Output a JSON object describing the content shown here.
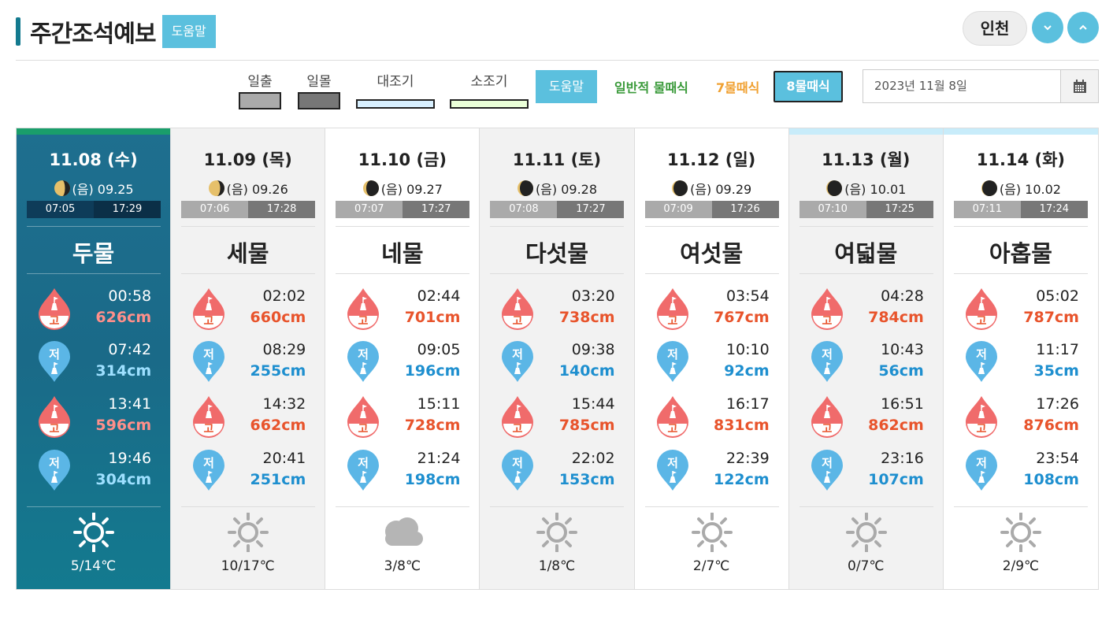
{
  "header": {
    "title": "주간조석예보",
    "help_label": "도움말",
    "region": "인천"
  },
  "legend": {
    "sunrise": "일출",
    "sunset": "일몰",
    "spring_tide": "대조기",
    "neap_tide": "소조기",
    "help_label": "도움말",
    "mode_general": "일반적 물때식",
    "mode_7": "7물때식",
    "mode_8": "8물때식",
    "date_value": "2023년 11월 8일",
    "colors": {
      "general": "#3a9a3a",
      "seven": "#f0a030",
      "spring": "#d8f0ff",
      "neap": "#eaffd8"
    }
  },
  "days": [
    {
      "date": "11.08 (수)",
      "moon": "(음) 09.25",
      "sunrise": "07:05",
      "sunset": "17:29",
      "tide_name": "두물",
      "tides": [
        {
          "type": "고",
          "time": "00:58",
          "height": "626cm"
        },
        {
          "type": "저",
          "time": "07:42",
          "height": "314cm"
        },
        {
          "type": "고",
          "time": "13:41",
          "height": "596cm"
        },
        {
          "type": "저",
          "time": "19:46",
          "height": "304cm"
        }
      ],
      "weather": "sun-icon",
      "temp": "5/14℃"
    },
    {
      "date": "11.09 (목)",
      "moon": "(음) 09.26",
      "sunrise": "07:06",
      "sunset": "17:28",
      "tide_name": "세물",
      "tides": [
        {
          "type": "고",
          "time": "02:02",
          "height": "660cm"
        },
        {
          "type": "저",
          "time": "08:29",
          "height": "255cm"
        },
        {
          "type": "고",
          "time": "14:32",
          "height": "662cm"
        },
        {
          "type": "저",
          "time": "20:41",
          "height": "251cm"
        }
      ],
      "weather": "sun-icon",
      "temp": "10/17℃"
    },
    {
      "date": "11.10 (금)",
      "moon": "(음) 09.27",
      "sunrise": "07:07",
      "sunset": "17:27",
      "tide_name": "네물",
      "tides": [
        {
          "type": "고",
          "time": "02:44",
          "height": "701cm"
        },
        {
          "type": "저",
          "time": "09:05",
          "height": "196cm"
        },
        {
          "type": "고",
          "time": "15:11",
          "height": "728cm"
        },
        {
          "type": "저",
          "time": "21:24",
          "height": "198cm"
        }
      ],
      "weather": "cloud-icon",
      "temp": "3/8℃"
    },
    {
      "date": "11.11 (토)",
      "moon": "(음) 09.28",
      "sunrise": "07:08",
      "sunset": "17:27",
      "tide_name": "다섯물",
      "tides": [
        {
          "type": "고",
          "time": "03:20",
          "height": "738cm"
        },
        {
          "type": "저",
          "time": "09:38",
          "height": "140cm"
        },
        {
          "type": "고",
          "time": "15:44",
          "height": "785cm"
        },
        {
          "type": "저",
          "time": "22:02",
          "height": "153cm"
        }
      ],
      "weather": "sun-icon",
      "temp": "1/8℃"
    },
    {
      "date": "11.12 (일)",
      "moon": "(음) 09.29",
      "sunrise": "07:09",
      "sunset": "17:26",
      "tide_name": "여섯물",
      "tides": [
        {
          "type": "고",
          "time": "03:54",
          "height": "767cm"
        },
        {
          "type": "저",
          "time": "10:10",
          "height": "92cm"
        },
        {
          "type": "고",
          "time": "16:17",
          "height": "831cm"
        },
        {
          "type": "저",
          "time": "22:39",
          "height": "122cm"
        }
      ],
      "weather": "sun-icon",
      "temp": "2/7℃"
    },
    {
      "date": "11.13 (월)",
      "moon": "(음) 10.01",
      "sunrise": "07:10",
      "sunset": "17:25",
      "tide_name": "여덟물",
      "tides": [
        {
          "type": "고",
          "time": "04:28",
          "height": "784cm"
        },
        {
          "type": "저",
          "time": "10:43",
          "height": "56cm"
        },
        {
          "type": "고",
          "time": "16:51",
          "height": "862cm"
        },
        {
          "type": "저",
          "time": "23:16",
          "height": "107cm"
        }
      ],
      "weather": "sun-icon",
      "temp": "0/7℃"
    },
    {
      "date": "11.14 (화)",
      "moon": "(음) 10.02",
      "sunrise": "07:11",
      "sunset": "17:24",
      "tide_name": "아홉물",
      "tides": [
        {
          "type": "고",
          "time": "05:02",
          "height": "787cm"
        },
        {
          "type": "저",
          "time": "11:17",
          "height": "35cm"
        },
        {
          "type": "고",
          "time": "17:26",
          "height": "876cm"
        },
        {
          "type": "저",
          "time": "23:54",
          "height": "108cm"
        }
      ],
      "weather": "sun-icon",
      "temp": "2/9℃"
    }
  ]
}
